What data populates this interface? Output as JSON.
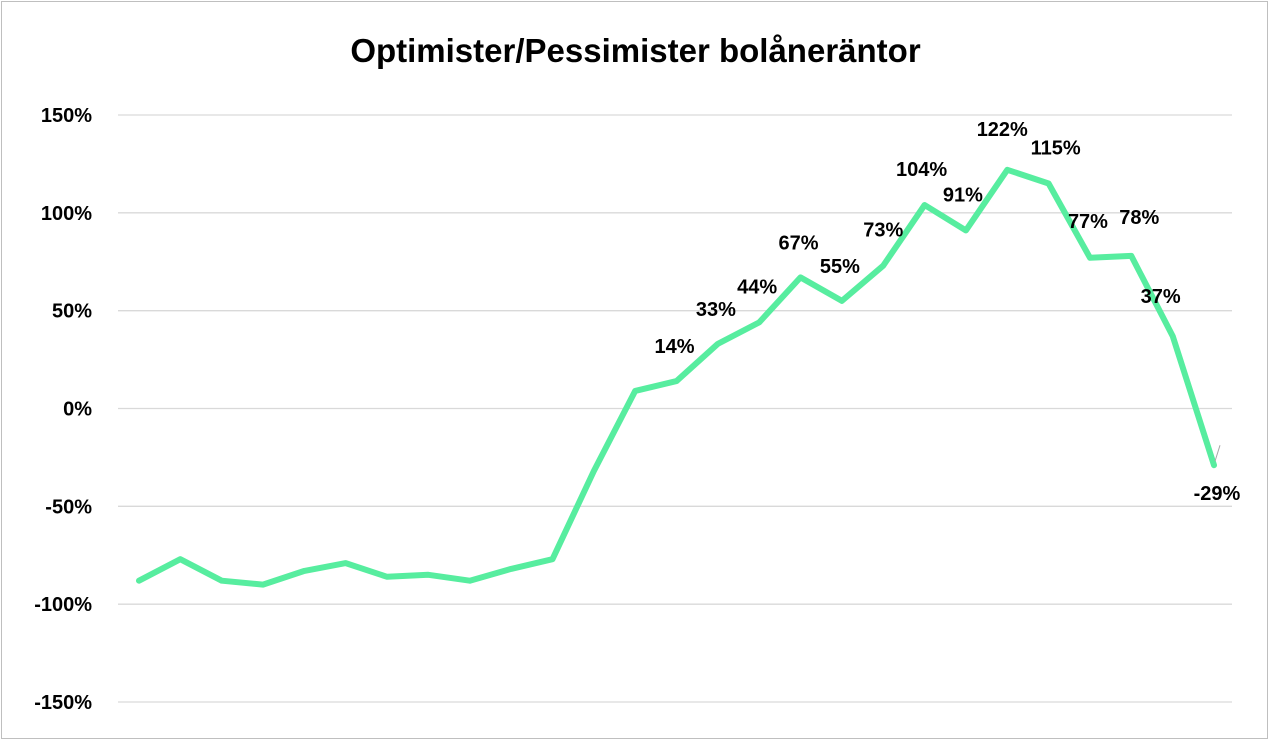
{
  "chart_data": {
    "type": "line",
    "title": "Optimister/Pessimister bolåneräntor",
    "xlabel": "",
    "ylabel": "",
    "ylim": [
      -150,
      150
    ],
    "yticks": [
      -150,
      -100,
      -50,
      0,
      50,
      100,
      150
    ],
    "ytick_labels": [
      "-150%",
      "-100%",
      "-50%",
      "0%",
      "50%",
      "100%",
      "150%"
    ],
    "grid": true,
    "legend": false,
    "line_color": "#57ed9f",
    "series": [
      {
        "values": [
          -88,
          -77,
          -88,
          -90,
          -83,
          -79,
          -86,
          -85,
          -88,
          -82,
          -77,
          -32,
          9,
          14,
          33,
          44,
          67,
          55,
          73,
          104,
          91,
          122,
          115,
          77,
          78,
          37,
          -29
        ],
        "data_labels": [
          "",
          "",
          "",
          "",
          "",
          "",
          "",
          "",
          "",
          "",
          "",
          "",
          "",
          "14%",
          "33%",
          "44%",
          "67%",
          "55%",
          "73%",
          "104%",
          "91%",
          "122%",
          "115%",
          "77%",
          "78%",
          "37%",
          "-29%"
        ]
      }
    ]
  }
}
